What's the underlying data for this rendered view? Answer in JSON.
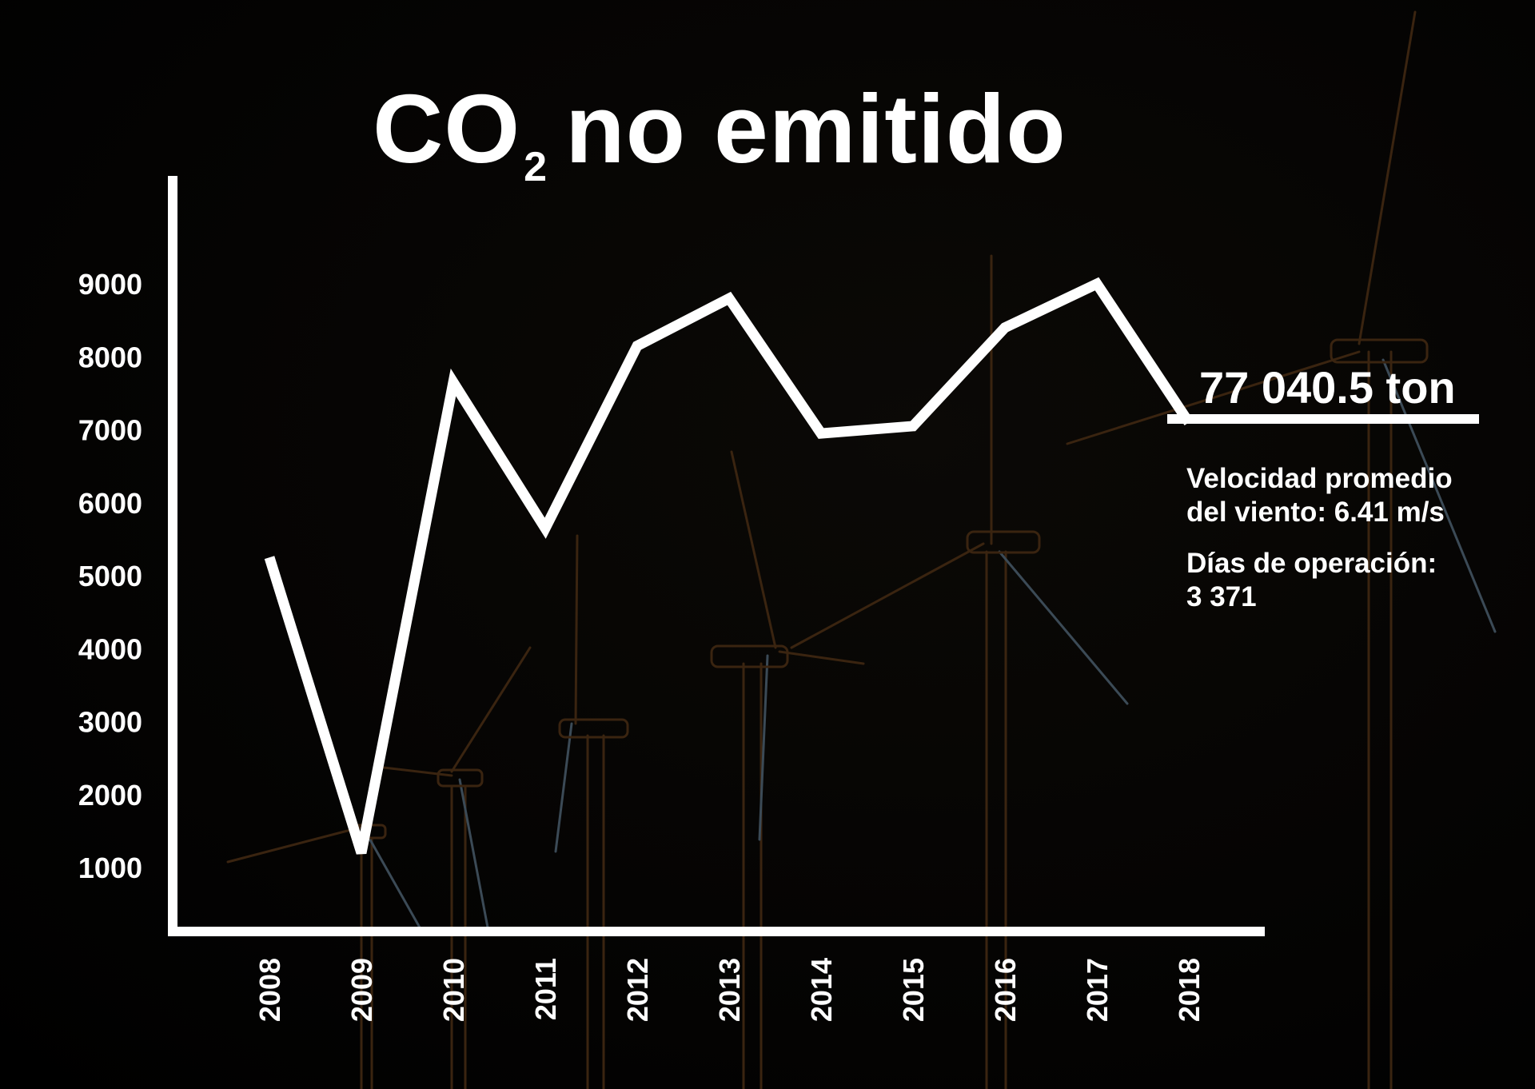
{
  "title": {
    "main": "CO",
    "subscript": "2",
    "rest": "no emitido"
  },
  "summary": {
    "total": "77 040.5 ton",
    "wind_speed_line1": "Velocidad promedio",
    "wind_speed_line2": "del viento: 6.41 m/s",
    "operation_days_line1": "Días de operación:",
    "operation_days_line2": "3 371"
  },
  "chart_data": {
    "type": "line",
    "title": "CO₂ no emitido",
    "xlabel": "",
    "ylabel": "",
    "x": [
      "2008",
      "2009",
      "2010",
      "2011",
      "2012",
      "2013",
      "2014",
      "2015",
      "2016",
      "2017",
      "2018"
    ],
    "values": [
      5250,
      1200,
      7650,
      5650,
      8150,
      8800,
      6950,
      7050,
      8400,
      9000,
      7100
    ],
    "yticks": [
      1000,
      2000,
      3000,
      4000,
      5000,
      6000,
      7000,
      8000,
      9000
    ],
    "ylim": [
      0,
      10000
    ],
    "grid": false,
    "line_color": "#ffffff",
    "background_color": "#000000"
  }
}
